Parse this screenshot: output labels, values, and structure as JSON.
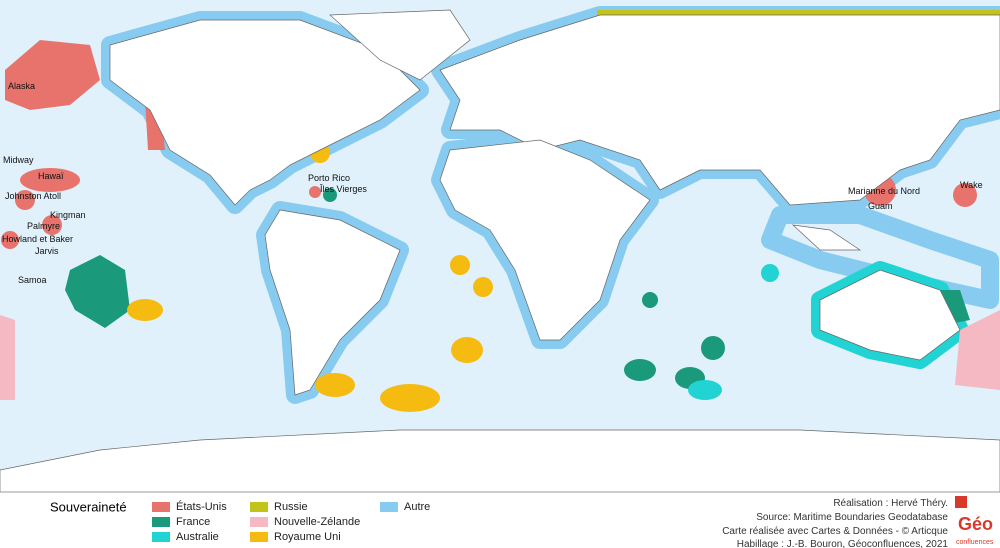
{
  "map": {
    "labels": [
      "Alaska",
      "Midway",
      "Hawaï",
      "Johnston Atoll",
      "Kingman",
      "Palmyre",
      "Howland et Baker",
      "Jarvis",
      "Samoa",
      "Porto Rico",
      "Îles Vierges",
      "Marianne du Nord",
      "Guam",
      "Wake"
    ]
  },
  "legend": {
    "title": "Souveraineté",
    "items": [
      {
        "label": "États-Unis",
        "color": "#e8736d"
      },
      {
        "label": "France",
        "color": "#1a9a7a"
      },
      {
        "label": "Australie",
        "color": "#22d3d3"
      },
      {
        "label": "Russie",
        "color": "#c3c41a"
      },
      {
        "label": "Nouvelle-Zélande",
        "color": "#f4b9c3"
      },
      {
        "label": "Royaume Uni",
        "color": "#f5bb10"
      },
      {
        "label": "Autre",
        "color": "#87ccf0"
      }
    ]
  },
  "credits": [
    "Réalisation : Hervé Théry.",
    "Source: Maritime Boundaries Geodatabase",
    "Carte réalisée avec Cartes & Données - © Articque",
    "Habillage : J.-B. Bouron, Géoconfluences, 2021"
  ],
  "logo": {
    "main": "Géo",
    "sub": "confluences"
  }
}
